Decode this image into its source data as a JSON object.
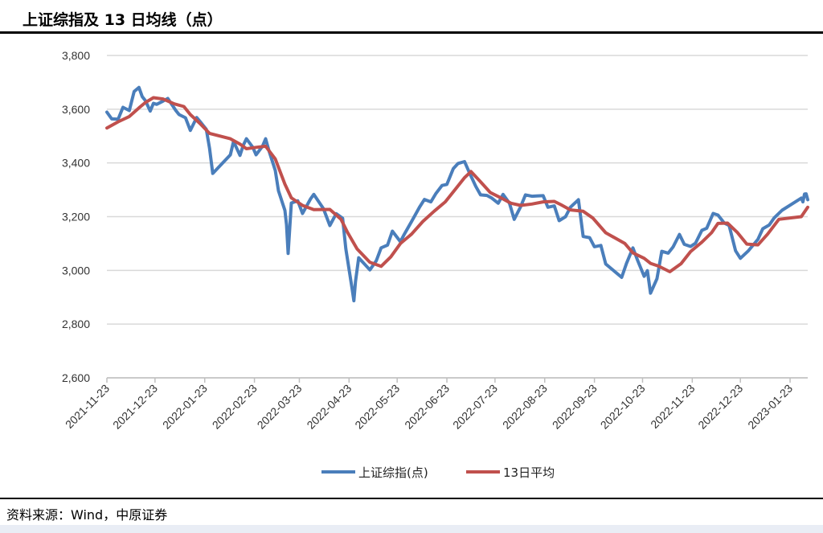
{
  "title": "上证综指及 13 日均线（点）",
  "source": "资料来源：Wind，中原证券",
  "chart_data": {
    "type": "line",
    "title": "上证综指及 13 日均线（点）",
    "xlabel": "",
    "ylabel": "",
    "ylim": [
      2600,
      3800
    ],
    "yticks": [
      2600,
      2800,
      3000,
      3200,
      3400,
      3600,
      3800
    ],
    "ytick_labels": [
      "2,600",
      "2,800",
      "3,000",
      "3,200",
      "3,400",
      "3,600",
      "3,800"
    ],
    "xlim": [
      "2021-11-23",
      "2023-02-03"
    ],
    "xticks": [
      "2021-11-23",
      "2021-12-23",
      "2022-01-23",
      "2022-02-23",
      "2022-03-23",
      "2022-04-23",
      "2022-05-23",
      "2022-06-23",
      "2022-07-23",
      "2022-08-23",
      "2022-09-23",
      "2022-10-23",
      "2022-11-23",
      "2022-12-23",
      "2023-01-23"
    ],
    "grid": "horizontal",
    "legend_position": "bottom",
    "series": [
      {
        "name": "上证综指(点)",
        "color": "#4a7ebb",
        "x": [
          "2021-11-23",
          "2021-11-26",
          "2021-11-30",
          "2021-12-03",
          "2021-12-07",
          "2021-12-10",
          "2021-12-13",
          "2021-12-15",
          "2021-12-17",
          "2021-12-20",
          "2021-12-22",
          "2021-12-24",
          "2021-12-28",
          "2021-12-31",
          "2022-01-05",
          "2022-01-07",
          "2022-01-11",
          "2022-01-14",
          "2022-01-18",
          "2022-01-20",
          "2022-01-24",
          "2022-01-26",
          "2022-01-28",
          "2022-02-08",
          "2022-02-10",
          "2022-02-14",
          "2022-02-16",
          "2022-02-18",
          "2022-02-22",
          "2022-02-24",
          "2022-02-28",
          "2022-03-02",
          "2022-03-04",
          "2022-03-08",
          "2022-03-10",
          "2022-03-14",
          "2022-03-15",
          "2022-03-16",
          "2022-03-18",
          "2022-03-22",
          "2022-03-25",
          "2022-03-30",
          "2022-04-01",
          "2022-04-07",
          "2022-04-11",
          "2022-04-15",
          "2022-04-19",
          "2022-04-21",
          "2022-04-25",
          "2022-04-26",
          "2022-04-27",
          "2022-04-29",
          "2022-05-06",
          "2022-05-10",
          "2022-05-13",
          "2022-05-17",
          "2022-05-20",
          "2022-05-25",
          "2022-05-27",
          "2022-06-01",
          "2022-06-06",
          "2022-06-09",
          "2022-06-13",
          "2022-06-16",
          "2022-06-20",
          "2022-06-23",
          "2022-06-27",
          "2022-06-30",
          "2022-07-04",
          "2022-07-07",
          "2022-07-11",
          "2022-07-14",
          "2022-07-18",
          "2022-07-21",
          "2022-07-25",
          "2022-07-28",
          "2022-08-01",
          "2022-08-04",
          "2022-08-08",
          "2022-08-11",
          "2022-08-15",
          "2022-08-18",
          "2022-08-22",
          "2022-08-25",
          "2022-08-29",
          "2022-09-01",
          "2022-09-05",
          "2022-09-08",
          "2022-09-13",
          "2022-09-16",
          "2022-09-20",
          "2022-09-23",
          "2022-09-27",
          "2022-09-30",
          "2022-10-10",
          "2022-10-13",
          "2022-10-17",
          "2022-10-20",
          "2022-10-24",
          "2022-10-26",
          "2022-10-28",
          "2022-11-01",
          "2022-11-04",
          "2022-11-08",
          "2022-11-11",
          "2022-11-15",
          "2022-11-18",
          "2022-11-22",
          "2022-11-25",
          "2022-11-29",
          "2022-12-02",
          "2022-12-06",
          "2022-12-09",
          "2022-12-13",
          "2022-12-16",
          "2022-12-20",
          "2022-12-23",
          "2022-12-28",
          "2023-01-03",
          "2023-01-06",
          "2023-01-10",
          "2023-01-13",
          "2023-01-18",
          "2023-01-30",
          "2023-01-31",
          "2023-02-01",
          "2023-02-02",
          "2023-02-03"
        ],
        "values": [
          3589,
          3564,
          3563,
          3607,
          3595,
          3666,
          3681,
          3647,
          3632,
          3593,
          3622,
          3618,
          3630,
          3640,
          3595,
          3580,
          3568,
          3521,
          3569,
          3555,
          3525,
          3455,
          3361,
          3430,
          3480,
          3428,
          3465,
          3490,
          3458,
          3430,
          3462,
          3490,
          3447,
          3372,
          3296,
          3223,
          3170,
          3063,
          3251,
          3259,
          3212,
          3266,
          3283,
          3230,
          3167,
          3211,
          3194,
          3080,
          2928,
          2887,
          2958,
          3047,
          3002,
          3036,
          3084,
          3094,
          3146,
          3107,
          3130,
          3182,
          3236,
          3264,
          3255,
          3285,
          3316,
          3320,
          3379,
          3398,
          3405,
          3364,
          3313,
          3281,
          3279,
          3269,
          3250,
          3283,
          3250,
          3190,
          3237,
          3281,
          3276,
          3277,
          3278,
          3235,
          3240,
          3185,
          3200,
          3235,
          3263,
          3126,
          3122,
          3088,
          3093,
          3024,
          2974,
          3026,
          3084,
          3036,
          2978,
          2999,
          2915,
          2969,
          3071,
          3064,
          3087,
          3134,
          3097,
          3089,
          3101,
          3149,
          3157,
          3212,
          3206,
          3176,
          3167,
          3073,
          3045,
          3073,
          3116,
          3155,
          3169,
          3195,
          3224,
          3269,
          3255,
          3284,
          3285,
          3263
        ]
      },
      {
        "name": "13日平均",
        "color": "#c0504d",
        "x": [
          "2021-11-23",
          "2021-11-30",
          "2021-12-07",
          "2021-12-13",
          "2021-12-17",
          "2021-12-22",
          "2021-12-28",
          "2022-01-04",
          "2022-01-10",
          "2022-01-14",
          "2022-01-20",
          "2022-01-26",
          "2022-02-08",
          "2022-02-14",
          "2022-02-18",
          "2022-02-24",
          "2022-03-02",
          "2022-03-08",
          "2022-03-14",
          "2022-03-18",
          "2022-03-25",
          "2022-04-01",
          "2022-04-11",
          "2022-04-18",
          "2022-04-22",
          "2022-04-28",
          "2022-05-06",
          "2022-05-13",
          "2022-05-19",
          "2022-05-25",
          "2022-06-01",
          "2022-06-08",
          "2022-06-15",
          "2022-06-22",
          "2022-06-28",
          "2022-07-04",
          "2022-07-08",
          "2022-07-14",
          "2022-07-20",
          "2022-07-26",
          "2022-08-02",
          "2022-08-08",
          "2022-08-15",
          "2022-08-22",
          "2022-08-29",
          "2022-09-02",
          "2022-09-08",
          "2022-09-16",
          "2022-09-22",
          "2022-09-30",
          "2022-10-12",
          "2022-10-17",
          "2022-10-24",
          "2022-10-28",
          "2022-11-02",
          "2022-11-09",
          "2022-11-16",
          "2022-11-22",
          "2022-11-29",
          "2022-12-05",
          "2022-12-09",
          "2022-12-15",
          "2022-12-21",
          "2022-12-27",
          "2023-01-03",
          "2023-01-09",
          "2023-01-16",
          "2023-01-30",
          "2023-02-03"
        ],
        "values": [
          3530,
          3553,
          3573,
          3605,
          3625,
          3643,
          3638,
          3620,
          3610,
          3580,
          3547,
          3510,
          3490,
          3470,
          3453,
          3458,
          3462,
          3415,
          3321,
          3270,
          3242,
          3226,
          3227,
          3190,
          3142,
          3080,
          3030,
          3015,
          3050,
          3100,
          3135,
          3182,
          3220,
          3255,
          3300,
          3345,
          3368,
          3330,
          3290,
          3272,
          3250,
          3242,
          3247,
          3255,
          3257,
          3245,
          3225,
          3220,
          3195,
          3140,
          3100,
          3065,
          3045,
          3026,
          3016,
          2995,
          3025,
          3070,
          3105,
          3140,
          3175,
          3176,
          3142,
          3098,
          3095,
          3135,
          3190,
          3200,
          3235
        ]
      }
    ]
  },
  "legend": [
    {
      "label": "上证综指(点)",
      "color": "#4a7ebb"
    },
    {
      "label": "13日平均",
      "color": "#c0504d"
    }
  ]
}
